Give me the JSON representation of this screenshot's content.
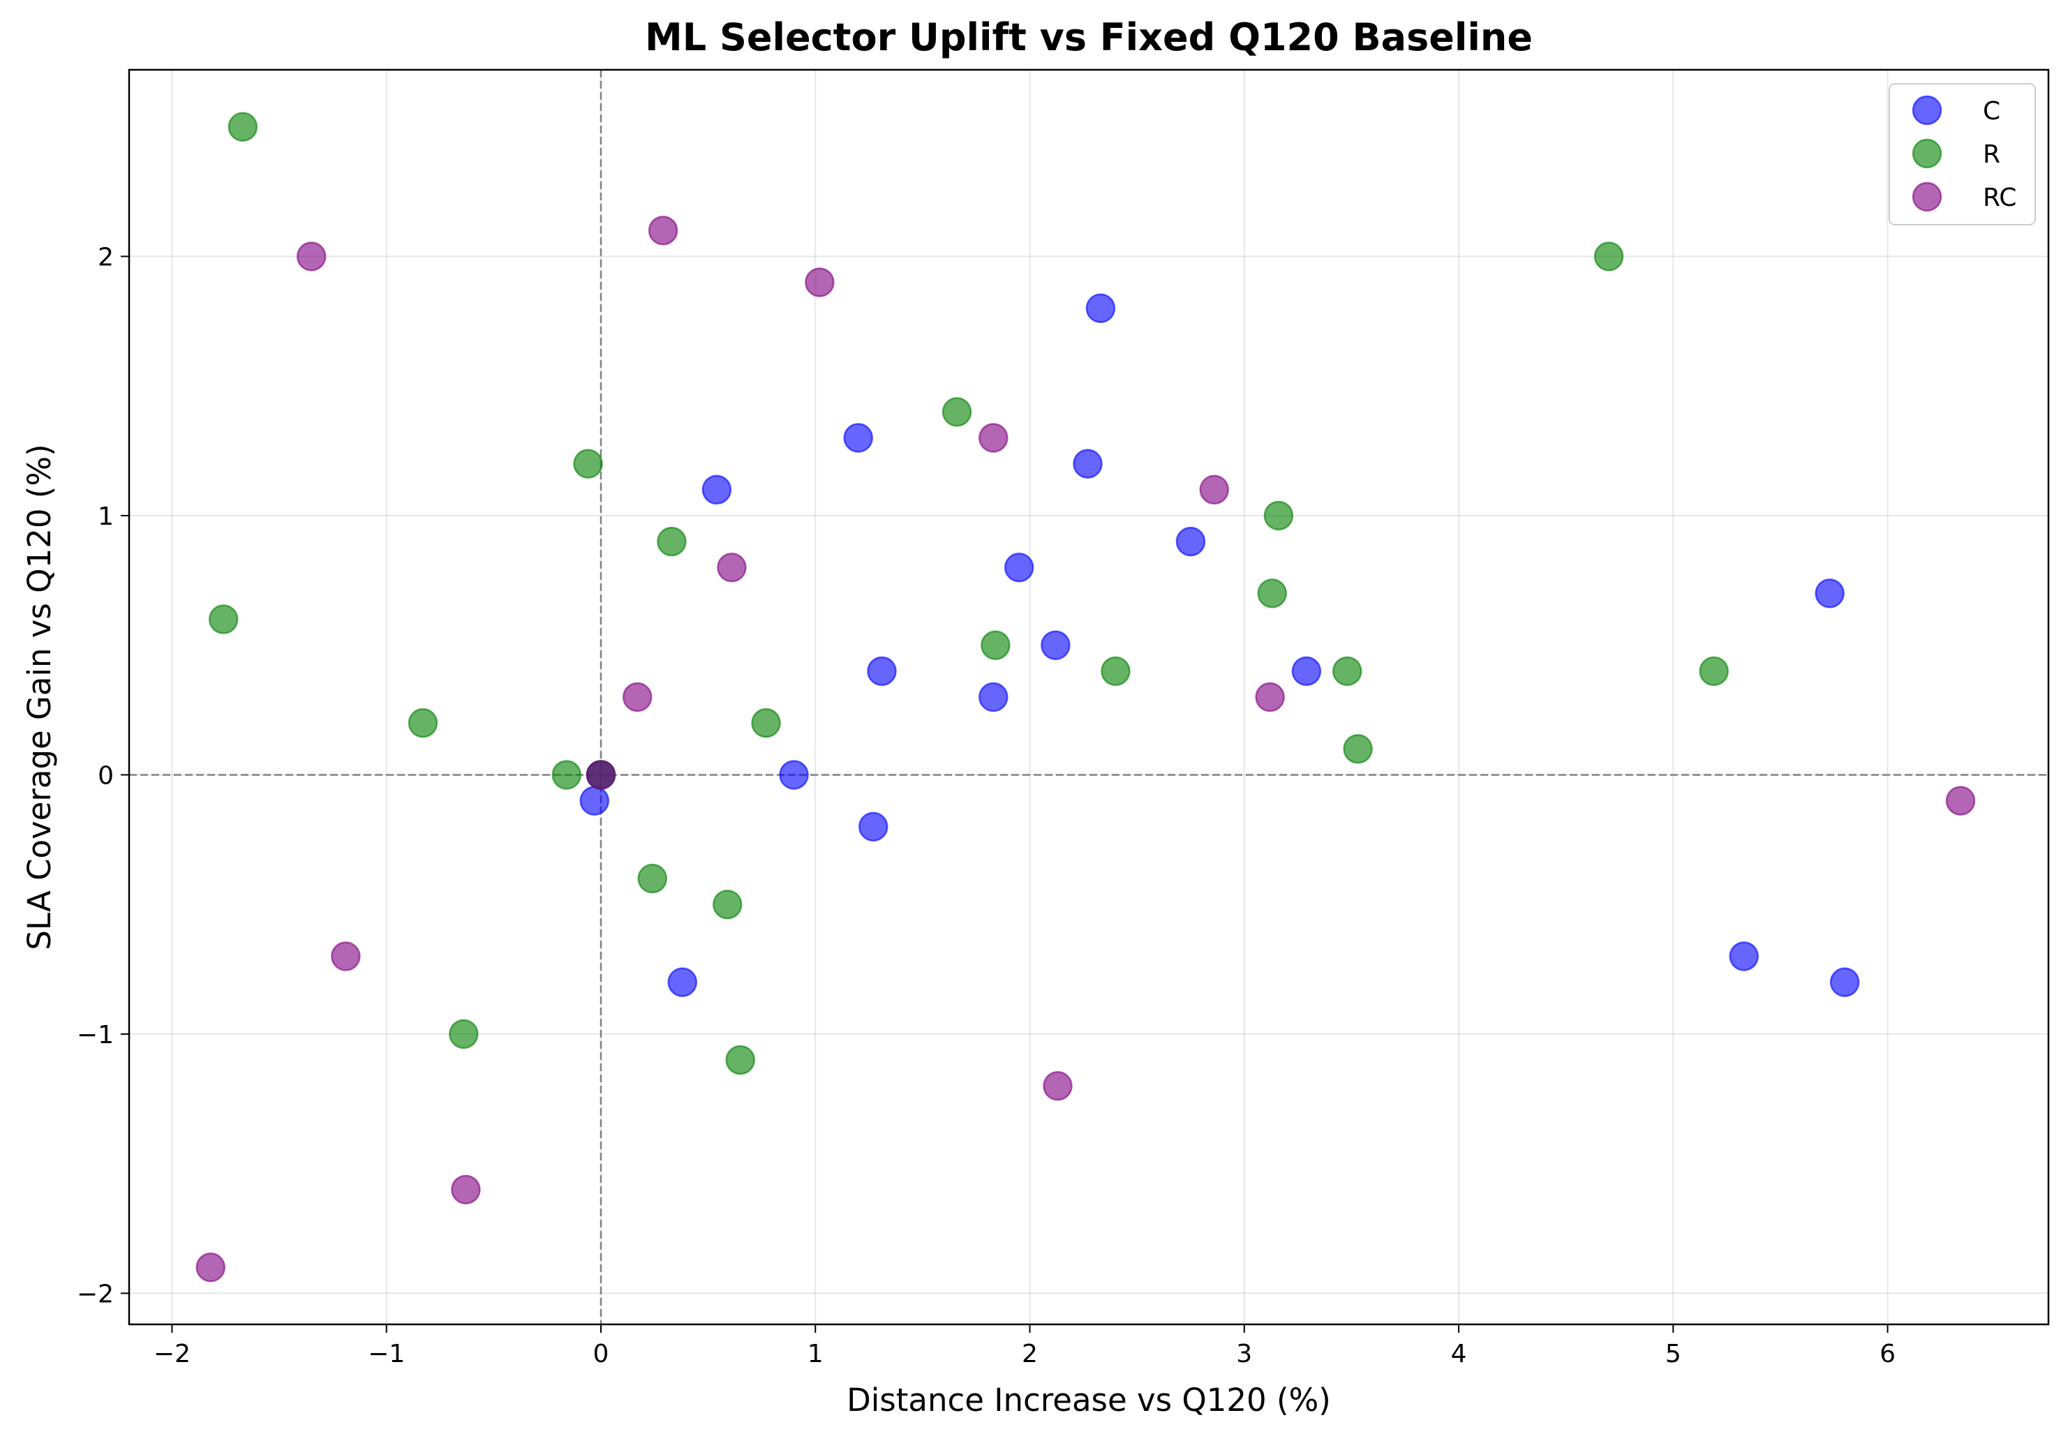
{
  "chart_data": {
    "type": "scatter",
    "title": "ML Selector Uplift vs Fixed Q120 Baseline",
    "xlabel": "Distance Increase vs Q120 (%)",
    "ylabel": "SLA Coverage Gain vs Q120 (%)",
    "xlim": [
      -2.2,
      6.75
    ],
    "ylim": [
      -2.12,
      2.72
    ],
    "xticks": [
      -2,
      -1,
      0,
      1,
      2,
      3,
      4,
      5,
      6
    ],
    "yticks": [
      -2,
      -1,
      0,
      1,
      2
    ],
    "xtick_labels": [
      "−2",
      "−1",
      "0",
      "1",
      "2",
      "3",
      "4",
      "5",
      "6"
    ],
    "ytick_labels": [
      "−2",
      "−1",
      "0",
      "1",
      "2"
    ],
    "grid": true,
    "reference_lines": {
      "x": 0,
      "y": 0,
      "style": "dashed",
      "color": "#808080"
    },
    "legend_position": "top-right",
    "series": [
      {
        "name": "C",
        "color": "#0000ff",
        "points": [
          [
            0.0,
            0.0
          ],
          [
            -0.03,
            -0.1
          ],
          [
            0.9,
            0.0
          ],
          [
            0.38,
            -0.8
          ],
          [
            1.27,
            -0.2
          ],
          [
            0.54,
            1.1
          ],
          [
            1.2,
            1.3
          ],
          [
            1.31,
            0.4
          ],
          [
            1.83,
            0.3
          ],
          [
            1.95,
            0.8
          ],
          [
            2.12,
            0.5
          ],
          [
            2.27,
            1.2
          ],
          [
            2.33,
            1.8
          ],
          [
            2.75,
            0.9
          ],
          [
            3.29,
            0.4
          ],
          [
            5.33,
            -0.7
          ],
          [
            5.73,
            0.7
          ],
          [
            5.8,
            -0.8
          ]
        ]
      },
      {
        "name": "R",
        "color": "#008000",
        "points": [
          [
            0.0,
            0.0
          ],
          [
            -1.67,
            2.5
          ],
          [
            -1.76,
            0.6
          ],
          [
            -0.83,
            0.2
          ],
          [
            -0.16,
            0.0
          ],
          [
            -0.06,
            1.2
          ],
          [
            0.33,
            0.9
          ],
          [
            0.24,
            -0.4
          ],
          [
            0.59,
            -0.5
          ],
          [
            0.77,
            0.2
          ],
          [
            0.65,
            -1.1
          ],
          [
            -0.64,
            -1.0
          ],
          [
            1.66,
            1.4
          ],
          [
            1.84,
            0.5
          ],
          [
            2.4,
            0.4
          ],
          [
            3.13,
            0.7
          ],
          [
            3.16,
            1.0
          ],
          [
            3.48,
            0.4
          ],
          [
            3.53,
            0.1
          ],
          [
            4.7,
            2.0
          ],
          [
            5.19,
            0.4
          ]
        ]
      },
      {
        "name": "RC",
        "color": "#800080",
        "points": [
          [
            0.0,
            0.0
          ],
          [
            -1.35,
            2.0
          ],
          [
            0.29,
            2.1
          ],
          [
            1.02,
            1.9
          ],
          [
            0.61,
            0.8
          ],
          [
            0.17,
            0.3
          ],
          [
            -1.19,
            -0.7
          ],
          [
            -0.63,
            -1.6
          ],
          [
            -1.82,
            -1.9
          ],
          [
            1.83,
            1.3
          ],
          [
            2.86,
            1.1
          ],
          [
            3.12,
            0.3
          ],
          [
            2.13,
            -1.2
          ],
          [
            6.34,
            -0.1
          ]
        ]
      }
    ]
  }
}
